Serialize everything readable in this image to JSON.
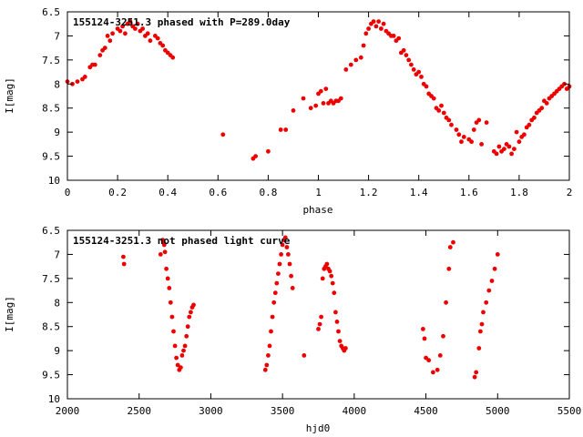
{
  "colors": {
    "series": "#ee0000",
    "axis": "#000000",
    "background": "#ffffff"
  },
  "chart_data": [
    {
      "type": "scatter",
      "title": "155124-3251.3 phased with P=289.0day",
      "xlabel": "phase",
      "ylabel": "I[mag]",
      "xlim": [
        0,
        2
      ],
      "ylim": [
        6.5,
        10
      ],
      "y_inverted": true,
      "grid": false,
      "x_ticks": [
        "0",
        "0.2",
        "0.4",
        "0.6",
        "0.8",
        "1",
        "1.2",
        "1.4",
        "1.6",
        "1.8",
        "2"
      ],
      "y_ticks": [
        "6.5",
        "7",
        "7.5",
        "8",
        "8.5",
        "9",
        "9.5",
        "10"
      ],
      "series": [
        {
          "marker": "filled-circle",
          "x": [
            0.0,
            0.02,
            0.04,
            0.06,
            0.07,
            0.09,
            0.1,
            0.11,
            0.13,
            0.14,
            0.15,
            0.16,
            0.17,
            0.18,
            0.2,
            0.21,
            0.22,
            0.23,
            0.24,
            0.25,
            0.26,
            0.27,
            0.28,
            0.29,
            0.3,
            0.31,
            0.32,
            0.33,
            0.35,
            0.36,
            0.37,
            0.38,
            0.39,
            0.4,
            0.41,
            0.42,
            0.62,
            0.74,
            0.75,
            0.8,
            0.85,
            0.87,
            0.9,
            0.94,
            0.97,
            0.99,
            1.0,
            1.01,
            1.02,
            1.03,
            1.04,
            1.05,
            1.06,
            1.07,
            1.08,
            1.09,
            1.11,
            1.13,
            1.15,
            1.17,
            1.18,
            1.19,
            1.2,
            1.21,
            1.22,
            1.23,
            1.24,
            1.25,
            1.26,
            1.27,
            1.28,
            1.29,
            1.3,
            1.31,
            1.32,
            1.33,
            1.34,
            1.35,
            1.36,
            1.37,
            1.38,
            1.39,
            1.4,
            1.41,
            1.42,
            1.43,
            1.44,
            1.45,
            1.46,
            1.47,
            1.48,
            1.49,
            1.5,
            1.51,
            1.52,
            1.53,
            1.55,
            1.56,
            1.57,
            1.58,
            1.6,
            1.61,
            1.62,
            1.63,
            1.64,
            1.65,
            1.67,
            1.7,
            1.71,
            1.72,
            1.73,
            1.74,
            1.75,
            1.76,
            1.77,
            1.78,
            1.79,
            1.8,
            1.81,
            1.82,
            1.83,
            1.84,
            1.85,
            1.86,
            1.87,
            1.88,
            1.89,
            1.9,
            1.91,
            1.92,
            1.93,
            1.94,
            1.95,
            1.96,
            1.97,
            1.98,
            1.99,
            2.0
          ],
          "y": [
            7.95,
            8.0,
            7.95,
            7.9,
            7.85,
            7.65,
            7.6,
            7.6,
            7.4,
            7.3,
            7.25,
            7.0,
            7.1,
            6.95,
            6.85,
            6.9,
            6.8,
            6.95,
            6.75,
            6.7,
            6.8,
            6.85,
            6.75,
            6.9,
            6.85,
            7.0,
            6.95,
            7.1,
            7.0,
            7.05,
            7.15,
            7.2,
            7.3,
            7.35,
            7.4,
            7.45,
            9.05,
            9.55,
            9.5,
            9.4,
            8.95,
            8.95,
            8.55,
            8.3,
            8.5,
            8.45,
            8.2,
            8.15,
            8.4,
            8.1,
            8.4,
            8.35,
            8.4,
            8.35,
            8.35,
            8.3,
            7.7,
            7.6,
            7.5,
            7.45,
            7.2,
            6.95,
            6.85,
            6.75,
            6.7,
            6.8,
            6.7,
            6.85,
            6.75,
            6.9,
            6.95,
            7.0,
            7.0,
            7.1,
            7.05,
            7.35,
            7.3,
            7.4,
            7.5,
            7.6,
            7.7,
            7.8,
            7.75,
            7.85,
            8.0,
            8.05,
            8.2,
            8.25,
            8.3,
            8.5,
            8.55,
            8.45,
            8.6,
            8.7,
            8.75,
            8.85,
            8.95,
            9.05,
            9.2,
            9.1,
            9.15,
            9.2,
            8.95,
            8.8,
            8.75,
            9.25,
            8.8,
            9.4,
            9.45,
            9.3,
            9.4,
            9.35,
            9.25,
            9.3,
            9.45,
            9.35,
            9.0,
            9.2,
            9.1,
            9.05,
            8.9,
            8.85,
            8.75,
            8.7,
            8.6,
            8.55,
            8.5,
            8.35,
            8.4,
            8.3,
            8.25,
            8.2,
            8.15,
            8.1,
            8.05,
            8.0,
            8.1,
            8.05
          ]
        }
      ]
    },
    {
      "type": "scatter",
      "title": "155124-3251.3 not phased light curve",
      "xlabel": "hjd0",
      "ylabel": "I[mag]",
      "xlim": [
        2000,
        5500
      ],
      "ylim": [
        6.5,
        10
      ],
      "y_inverted": true,
      "grid": false,
      "x_ticks": [
        "2000",
        "2500",
        "3000",
        "3500",
        "4000",
        "4500",
        "5000",
        "5500"
      ],
      "y_ticks": [
        "6.5",
        "7",
        "7.5",
        "8",
        "8.5",
        "9",
        "9.5",
        "10"
      ],
      "series": [
        {
          "marker": "filled-circle",
          "x": [
            2390,
            2395,
            2650,
            2665,
            2670,
            2675,
            2680,
            2690,
            2700,
            2710,
            2720,
            2730,
            2740,
            2750,
            2760,
            2770,
            2780,
            2790,
            2800,
            2810,
            2820,
            2830,
            2840,
            2850,
            2860,
            2870,
            2880,
            3380,
            3390,
            3400,
            3410,
            3420,
            3430,
            3440,
            3450,
            3460,
            3470,
            3480,
            3490,
            3500,
            3510,
            3520,
            3530,
            3540,
            3550,
            3560,
            3570,
            3650,
            3750,
            3760,
            3770,
            3780,
            3790,
            3800,
            3810,
            3820,
            3830,
            3840,
            3850,
            3860,
            3870,
            3880,
            3890,
            3900,
            3910,
            3920,
            3930,
            3940,
            4480,
            4490,
            4500,
            4520,
            4550,
            4580,
            4600,
            4620,
            4640,
            4660,
            4670,
            4690,
            4840,
            4850,
            4870,
            4880,
            4890,
            4900,
            4920,
            4940,
            4960,
            4980,
            5000
          ],
          "y": [
            7.05,
            7.2,
            7.0,
            6.7,
            6.75,
            6.8,
            6.95,
            7.3,
            7.5,
            7.7,
            8.0,
            8.3,
            8.6,
            8.9,
            9.15,
            9.3,
            9.4,
            9.35,
            9.1,
            9.0,
            8.9,
            8.7,
            8.5,
            8.3,
            8.2,
            8.1,
            8.05,
            9.4,
            9.3,
            9.1,
            8.9,
            8.6,
            8.3,
            8.0,
            7.8,
            7.6,
            7.4,
            7.2,
            7.0,
            6.8,
            6.7,
            6.65,
            6.85,
            7.0,
            7.2,
            7.45,
            7.7,
            9.1,
            8.55,
            8.45,
            8.3,
            7.5,
            7.3,
            7.25,
            7.2,
            7.3,
            7.35,
            7.45,
            7.6,
            7.8,
            8.2,
            8.4,
            8.6,
            8.8,
            8.9,
            8.95,
            9.0,
            8.95,
            8.55,
            8.75,
            9.15,
            9.2,
            9.45,
            9.4,
            9.1,
            8.7,
            8.0,
            7.3,
            6.85,
            6.75,
            9.55,
            9.45,
            8.95,
            8.6,
            8.45,
            8.2,
            8.0,
            7.75,
            7.55,
            7.3,
            7.0
          ]
        }
      ]
    }
  ]
}
